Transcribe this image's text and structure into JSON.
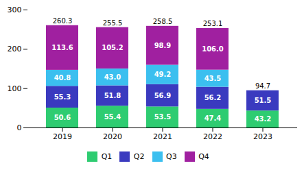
{
  "chart_data": {
    "type": "bar",
    "stacked": true,
    "data_labels": true,
    "categories": [
      "2019",
      "2020",
      "2021",
      "2022",
      "2023"
    ],
    "series": [
      {
        "name": "Q1",
        "color": "#2ecc71",
        "values": [
          50.6,
          55.4,
          53.5,
          47.4,
          43.2
        ],
        "value_labels": [
          "50.6",
          "55.4",
          "53.5",
          "47.4",
          "43.2"
        ]
      },
      {
        "name": "Q2",
        "color": "#3a3abf",
        "values": [
          55.3,
          51.8,
          56.9,
          56.2,
          51.5
        ],
        "value_labels": [
          "55.3",
          "51.8",
          "56.9",
          "56.2",
          "51.5"
        ]
      },
      {
        "name": "Q3",
        "color": "#3bbfef",
        "values": [
          40.8,
          43.0,
          49.2,
          43.5,
          0.0
        ],
        "value_labels": [
          "40.8",
          "43.0",
          "49.2",
          "43.5",
          null
        ]
      },
      {
        "name": "Q4",
        "color": "#a020a0",
        "values": [
          113.6,
          105.2,
          98.9,
          106.0,
          0.0
        ],
        "value_labels": [
          "113.6",
          "105.2",
          "98.9",
          "106.0",
          null
        ]
      }
    ],
    "totals": [
      260.3,
      255.5,
      258.5,
      253.1,
      94.7
    ],
    "ylim": [
      0,
      300
    ],
    "yticks": [
      0,
      100,
      200,
      300
    ],
    "grid": false,
    "legend": "bottom"
  }
}
